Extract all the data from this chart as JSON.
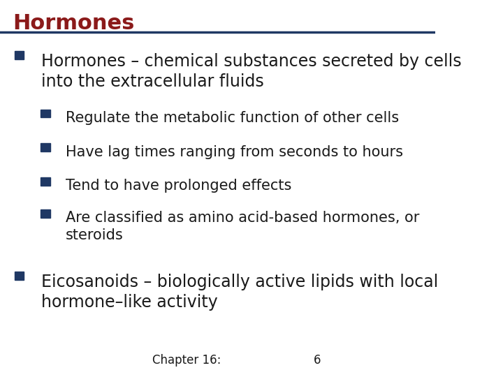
{
  "title": "Hormones",
  "title_color": "#8B1A1A",
  "title_fontsize": 22,
  "title_bold": true,
  "bg_color": "#FFFFFF",
  "header_line_color": "#1F3864",
  "bullet_color": "#1F3864",
  "text_color": "#1A1A1A",
  "footer_text": "Chapter 16:",
  "footer_number": "6",
  "items": [
    {
      "level": 1,
      "text": "Hormones – chemical substances secreted by cells\ninto the extracellular fluids",
      "fontsize": 17
    },
    {
      "level": 2,
      "text": "Regulate the metabolic function of other cells",
      "fontsize": 15
    },
    {
      "level": 2,
      "text": "Have lag times ranging from seconds to hours",
      "fontsize": 15
    },
    {
      "level": 2,
      "text": "Tend to have prolonged effects",
      "fontsize": 15
    },
    {
      "level": 2,
      "text": "Are classified as amino acid-based hormones, or\nsteroids",
      "fontsize": 15
    },
    {
      "level": 1,
      "text": "Eicosanoids – biologically active lipids with local\nhormone–like activity",
      "fontsize": 17
    }
  ]
}
